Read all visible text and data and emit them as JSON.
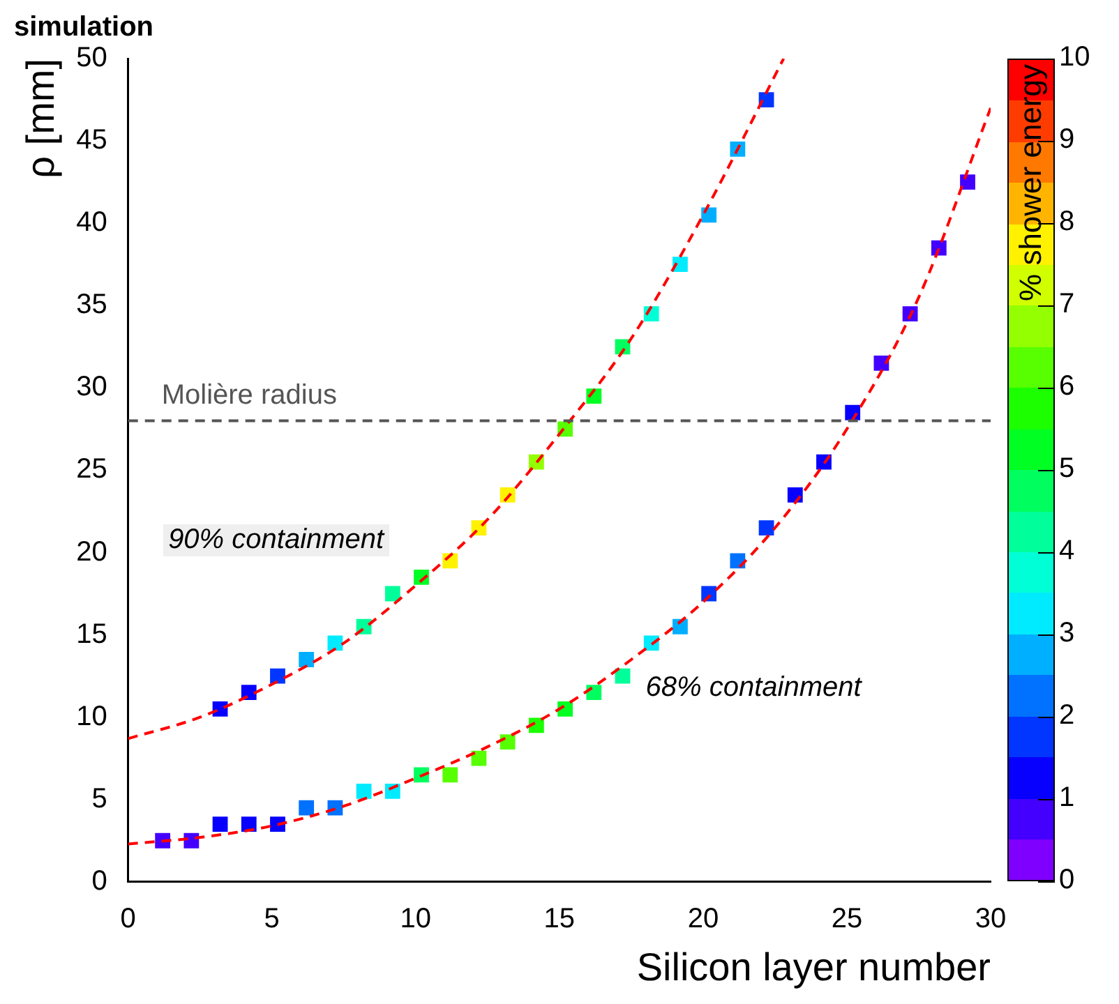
{
  "chart_data": {
    "type": "scatter",
    "title": "simulation",
    "xlabel": "Silicon layer number",
    "ylabel": "ρ [mm]",
    "clabel": "% shower energy",
    "clim": [
      0,
      10
    ],
    "cticks": [
      0,
      1,
      2,
      3,
      4,
      5,
      6,
      7,
      8,
      9,
      10
    ],
    "xlim": [
      0,
      30
    ],
    "xticks": [
      0,
      5,
      10,
      15,
      20,
      25,
      30
    ],
    "ylim": [
      0,
      50
    ],
    "yticks": [
      0,
      5,
      10,
      15,
      20,
      25,
      30,
      35,
      40,
      45,
      50
    ],
    "grid": false,
    "legend": false,
    "marker": "square",
    "series": [
      {
        "x": [
          3.2,
          4.2,
          5.2,
          6.2,
          7.2,
          8.2,
          9.2,
          10.2,
          11.2,
          12.2,
          13.2,
          14.2,
          15.2,
          16.2,
          17.2,
          18.2,
          19.2,
          20.2,
          21.2,
          22.2
        ],
        "values": [
          10.5,
          11.5,
          12.5,
          13.5,
          14.5,
          15.5,
          17.5,
          18.5,
          19.5,
          21.5,
          23.5,
          25.5,
          27.5,
          29.5,
          32.5,
          34.5,
          37.5,
          40.5,
          44.5,
          47.5
        ],
        "cvalues": [
          1.0,
          1.3,
          1.8,
          2.8,
          3.3,
          4.3,
          4.3,
          5.3,
          7.8,
          7.8,
          7.8,
          6.8,
          6.3,
          5.3,
          4.8,
          3.8,
          3.3,
          2.8,
          2.8,
          1.8
        ],
        "colors": [
          "#0700ff",
          "#0700ff",
          "#0036ff",
          "#00aeff",
          "#00ebff",
          "#00ff9a",
          "#00ff9a",
          "#00ff22",
          "#fff200",
          "#fff200",
          "#fff200",
          "#94ff00",
          "#57ff00",
          "#00ff22",
          "#00ff5e",
          "#00ffd7",
          "#00ebff",
          "#00aeff",
          "#00aeff",
          "#0036ff"
        ]
      },
      {
        "x": [
          1.2,
          2.2,
          3.2,
          4.2,
          5.2,
          6.2,
          7.2,
          8.2,
          9.2,
          10.2,
          11.2,
          12.2,
          13.2,
          14.2,
          15.2,
          16.2,
          17.2,
          18.2,
          19.2,
          20.2,
          21.2,
          22.2,
          23.2,
          24.2,
          25.2,
          26.2,
          27.2,
          28.2,
          29.2
        ],
        "values": [
          2.5,
          2.5,
          3.5,
          3.5,
          3.5,
          4.5,
          4.5,
          5.5,
          5.5,
          6.5,
          6.5,
          7.5,
          8.5,
          9.5,
          10.5,
          11.5,
          12.5,
          14.5,
          15.5,
          17.5,
          19.5,
          21.5,
          23.5,
          25.5,
          28.5,
          31.5,
          34.5,
          38.5,
          42.5
        ],
        "cvalues": [
          0.5,
          0.5,
          1.0,
          1.3,
          1.3,
          2.3,
          2.3,
          3.3,
          3.3,
          4.8,
          6.3,
          6.3,
          6.0,
          5.8,
          5.3,
          4.8,
          4.3,
          3.3,
          2.8,
          1.8,
          2.3,
          1.8,
          1.3,
          1.0,
          1.3,
          0.8,
          0.8,
          0.8,
          0.8
        ],
        "colors": [
          "#4300ff",
          "#4300ff",
          "#0700ff",
          "#0700ff",
          "#0700ff",
          "#0072ff",
          "#0072ff",
          "#00ebff",
          "#00ebff",
          "#00ff5e",
          "#57ff00",
          "#57ff00",
          "#57ff00",
          "#1bff00",
          "#00ff22",
          "#00ff5e",
          "#00ff9a",
          "#00ebff",
          "#00aeff",
          "#0036ff",
          "#0072ff",
          "#0036ff",
          "#0700ff",
          "#0700ff",
          "#0700ff",
          "#4300ff",
          "#4300ff",
          "#4300ff",
          "#4300ff"
        ]
      },
      {
        "type": "line",
        "color": "#ff0000",
        "line_style": "dashed",
        "marker": "none",
        "x": [
          0,
          2.5,
          5,
          7.5,
          10,
          12.5,
          15,
          17.5,
          20,
          22.8
        ],
        "values": [
          8.7,
          10,
          12,
          14.5,
          18,
          22,
          27.2,
          33,
          40.5,
          50
        ]
      },
      {
        "type": "line",
        "color": "#ff0000",
        "line_style": "dashed",
        "marker": "none",
        "x": [
          0,
          2.5,
          5,
          7.5,
          10,
          12.5,
          15,
          17.5,
          20,
          22.5,
          25,
          27.5,
          30
        ],
        "values": [
          2.3,
          2.7,
          3.4,
          4.6,
          6.3,
          8.2,
          10.5,
          13.5,
          17,
          21.5,
          27.5,
          35.5,
          47
        ]
      }
    ],
    "ref_lines": [
      {
        "axis": "y",
        "value": 28,
        "label": "Molière radius",
        "color": "#555555",
        "line_style": "dashed"
      }
    ],
    "annotations": [
      "90% containment",
      "68% containment"
    ]
  }
}
